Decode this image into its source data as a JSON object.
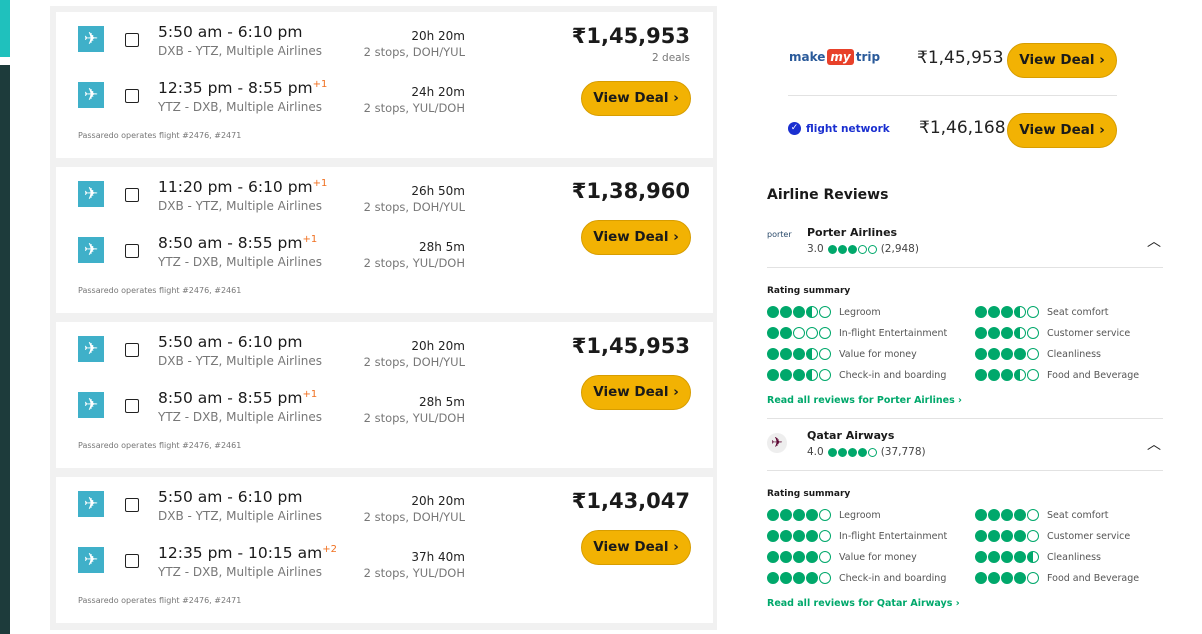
{
  "flights": [
    {
      "legs": [
        {
          "times": "5:50 am - 6:10 pm",
          "plus": "",
          "route": "DXB - YTZ, Multiple Airlines",
          "duration": "20h 20m",
          "stops": "2 stops, DOH/YUL"
        },
        {
          "times": "12:35 pm - 8:55 pm",
          "plus": "+1",
          "route": "YTZ - DXB, Multiple Airlines",
          "duration": "24h 20m",
          "stops": "2 stops, YUL/DOH"
        }
      ],
      "operator": "Passaredo operates flight #2476, #2471",
      "price": "₹1,45,953",
      "deals": "2 deals",
      "button": "View Deal ›"
    },
    {
      "legs": [
        {
          "times": "11:20 pm - 6:10 pm",
          "plus": "+1",
          "route": "DXB - YTZ, Multiple Airlines",
          "duration": "26h 50m",
          "stops": "2 stops, DOH/YUL"
        },
        {
          "times": "8:50 am - 8:55 pm",
          "plus": "+1",
          "route": "YTZ - DXB, Multiple Airlines",
          "duration": "28h 5m",
          "stops": "2 stops, YUL/DOH"
        }
      ],
      "operator": "Passaredo operates flight #2476, #2461",
      "price": "₹1,38,960",
      "deals": "",
      "button": "View Deal ›"
    },
    {
      "legs": [
        {
          "times": "5:50 am - 6:10 pm",
          "plus": "",
          "route": "DXB - YTZ, Multiple Airlines",
          "duration": "20h 20m",
          "stops": "2 stops, DOH/YUL"
        },
        {
          "times": "8:50 am - 8:55 pm",
          "plus": "+1",
          "route": "YTZ - DXB, Multiple Airlines",
          "duration": "28h 5m",
          "stops": "2 stops, YUL/DOH"
        }
      ],
      "operator": "Passaredo operates flight #2476, #2461",
      "price": "₹1,45,953",
      "deals": "",
      "button": "View Deal ›"
    },
    {
      "legs": [
        {
          "times": "5:50 am - 6:10 pm",
          "plus": "",
          "route": "DXB - YTZ, Multiple Airlines",
          "duration": "20h 20m",
          "stops": "2 stops, DOH/YUL"
        },
        {
          "times": "12:35 pm - 10:15 am",
          "plus": "+2",
          "route": "YTZ - DXB, Multiple Airlines",
          "duration": "37h 40m",
          "stops": "2 stops, YUL/DOH"
        }
      ],
      "operator": "Passaredo operates flight #2476, #2471",
      "price": "₹1,43,047",
      "deals": "",
      "button": "View Deal ›"
    }
  ],
  "providers": [
    {
      "logo": "makemytrip",
      "price": "₹1,45,953",
      "button": "View Deal ›"
    },
    {
      "logo": "flight network",
      "price": "₹1,46,168",
      "button": "View Deal ›"
    }
  ],
  "reviews_title": "Airline Reviews",
  "airlines": [
    {
      "logo": "porter",
      "name": "Porter Airlines",
      "score": "3.0",
      "score_value": 3,
      "count": "(2,948)",
      "summary_label": "Rating summary",
      "criteria": [
        {
          "label": "Legroom",
          "value": 3.5
        },
        {
          "label": "Seat comfort",
          "value": 3.5
        },
        {
          "label": "In-flight Entertainment",
          "value": 2
        },
        {
          "label": "Customer service",
          "value": 3.5
        },
        {
          "label": "Value for money",
          "value": 3.5
        },
        {
          "label": "Cleanliness",
          "value": 4
        },
        {
          "label": "Check-in and boarding",
          "value": 3.5
        },
        {
          "label": "Food and Beverage",
          "value": 3.5
        }
      ],
      "read_link": "Read all reviews for Porter Airlines ›"
    },
    {
      "logo": "qatar",
      "name": "Qatar Airways",
      "score": "4.0",
      "score_value": 4,
      "count": "(37,778)",
      "summary_label": "Rating summary",
      "criteria": [
        {
          "label": "Legroom",
          "value": 4
        },
        {
          "label": "Seat comfort",
          "value": 4
        },
        {
          "label": "In-flight Entertainment",
          "value": 4
        },
        {
          "label": "Customer service",
          "value": 4
        },
        {
          "label": "Value for money",
          "value": 4
        },
        {
          "label": "Cleanliness",
          "value": 4.5
        },
        {
          "label": "Check-in and boarding",
          "value": 4
        },
        {
          "label": "Food and Beverage",
          "value": 4
        }
      ],
      "read_link": "Read all reviews for Qatar Airways ›"
    }
  ],
  "colors": {
    "accent": "#f2b203",
    "rating": "#00a86b",
    "flight_icon": "#3fb0c9",
    "plus_day": "#f07020"
  }
}
